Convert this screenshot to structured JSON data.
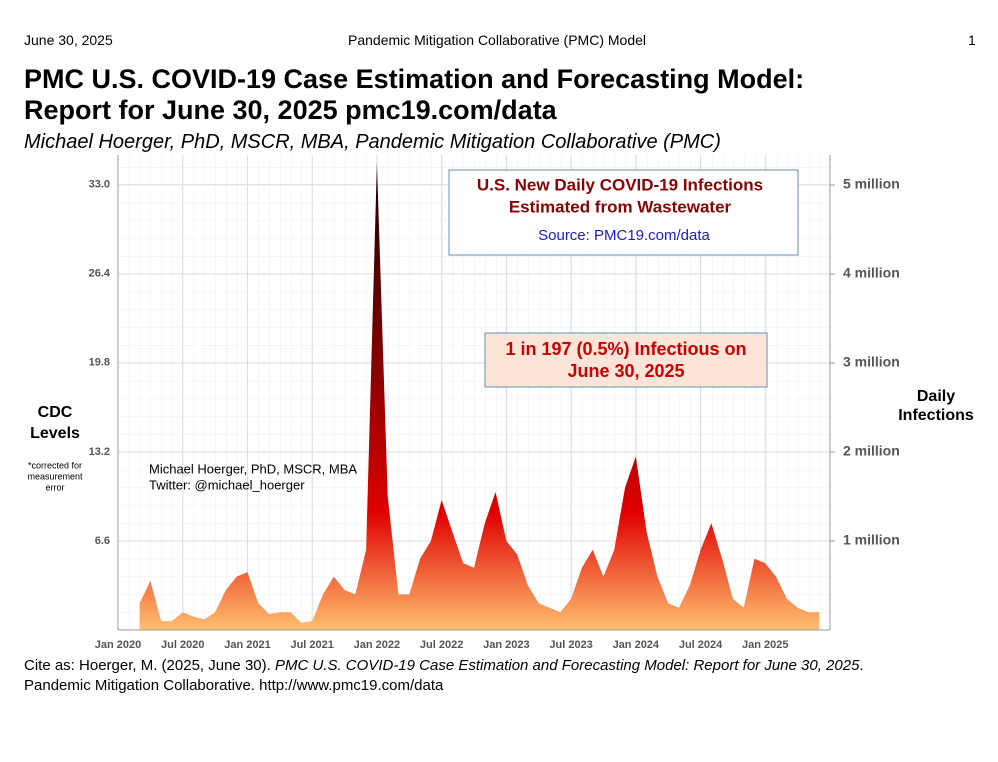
{
  "header": {
    "date": "June 30, 2025",
    "center": "Pandemic Mitigation Collaborative (PMC) Model",
    "page": "1"
  },
  "title": [
    "PMC U.S. COVID-19 Case Estimation and Forecasting Model:",
    "Report for June 30, 2025 pmc19.com/data"
  ],
  "subtitle": "Michael Hoerger, PhD, MSCR, MBA, Pandemic Mitigation Collaborative (PMC)",
  "chart_data": {
    "type": "area",
    "box_title": [
      "U.S. New Daily COVID-19 Infections",
      "Estimated from Wastewater"
    ],
    "source": "Source: PMC19.com/data",
    "highlight": [
      "1 in 197 (0.5%) Infectious on",
      "June 30, 2025"
    ],
    "author": [
      "Michael Hoerger, PhD, MSCR, MBA",
      "Twitter: @michael_hoerger"
    ],
    "ylabel": [
      "CDC",
      "Levels"
    ],
    "ynote": [
      "*corrected for",
      "measurement",
      "error"
    ],
    "y2label": [
      "Daily",
      "Infections"
    ],
    "x": [
      "2020-03",
      "2020-04",
      "2020-05",
      "2020-06",
      "2020-07",
      "2020-08",
      "2020-09",
      "2020-10",
      "2020-11",
      "2020-12",
      "2021-01",
      "2021-02",
      "2021-03",
      "2021-04",
      "2021-05",
      "2021-06",
      "2021-07",
      "2021-08",
      "2021-09",
      "2021-10",
      "2021-11",
      "2021-12",
      "2022-01",
      "2022-02",
      "2022-03",
      "2022-04",
      "2022-05",
      "2022-06",
      "2022-07",
      "2022-08",
      "2022-09",
      "2022-10",
      "2022-11",
      "2022-12",
      "2023-01",
      "2023-02",
      "2023-03",
      "2023-04",
      "2023-05",
      "2023-06",
      "2023-07",
      "2023-08",
      "2023-09",
      "2023-10",
      "2023-11",
      "2023-12",
      "2024-01",
      "2024-02",
      "2024-03",
      "2024-04",
      "2024-05",
      "2024-06",
      "2024-07",
      "2024-08",
      "2024-09",
      "2024-10",
      "2024-11",
      "2024-12",
      "2025-01",
      "2025-02",
      "2025-03",
      "2025-04",
      "2025-05",
      "2025-06"
    ],
    "series": [
      {
        "name": "Daily Infections",
        "color": "#e00000",
        "axis": "y2",
        "values": [
          300000,
          550000,
          100000,
          100000,
          200000,
          150000,
          120000,
          200000,
          450000,
          600000,
          650000,
          300000,
          180000,
          200000,
          200000,
          80000,
          100000,
          400000,
          600000,
          450000,
          400000,
          900000,
          5250000,
          1500000,
          400000,
          400000,
          800000,
          1000000,
          1460000,
          1100000,
          750000,
          700000,
          1200000,
          1550000,
          1000000,
          850000,
          500000,
          300000,
          250000,
          200000,
          350000,
          700000,
          900000,
          600000,
          900000,
          1600000,
          1950000,
          1100000,
          600000,
          300000,
          250000,
          500000,
          900000,
          1200000,
          800000,
          350000,
          250000,
          800000,
          750000,
          600000,
          350000,
          250000,
          200000,
          200000
        ]
      }
    ],
    "xlim": [
      "2020-01",
      "2025-07"
    ],
    "xticks": [
      {
        "value": "2020-01",
        "label": "Jan 2020"
      },
      {
        "value": "2020-07",
        "label": "Jul 2020"
      },
      {
        "value": "2021-01",
        "label": "Jan 2021"
      },
      {
        "value": "2021-07",
        "label": "Jul 2021"
      },
      {
        "value": "2022-01",
        "label": "Jan 2022"
      },
      {
        "value": "2022-07",
        "label": "Jul 2022"
      },
      {
        "value": "2023-01",
        "label": "Jan 2023"
      },
      {
        "value": "2023-07",
        "label": "Jul 2023"
      },
      {
        "value": "2024-01",
        "label": "Jan 2024"
      },
      {
        "value": "2024-07",
        "label": "Jul 2024"
      },
      {
        "value": "2025-01",
        "label": "Jan 2025"
      }
    ],
    "ylim": [
      0,
      35.2
    ],
    "yticks": [
      6.6,
      13.2,
      19.8,
      26.4,
      {
        "value": 33,
        "label": "33.0"
      }
    ],
    "y2lim": [
      0,
      5337000
    ],
    "y2ticks": [
      {
        "value": 1000000,
        "label": "1 million"
      },
      {
        "value": 2000000,
        "label": "2 million"
      },
      {
        "value": 3000000,
        "label": "3 million"
      },
      {
        "value": 4000000,
        "label": "4 million"
      },
      {
        "value": 5000000,
        "label": "5 million"
      }
    ],
    "grid": true
  },
  "citation": {
    "line1": [
      "Cite as: Hoerger, M. (2025, June 30). ",
      "PMC U.S. COVID-19 Case Estimation and Forecasting Model: Report for June 30, 2025",
      "."
    ],
    "line2": "Pandemic Mitigation Collaborative. http://www.pmc19.com/data"
  }
}
